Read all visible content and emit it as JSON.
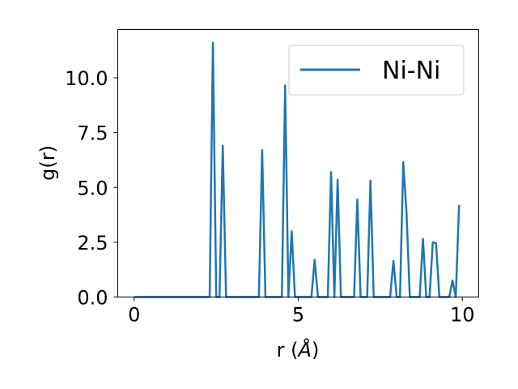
{
  "chart_data": {
    "type": "line",
    "xlabel_prefix": "r (",
    "xlabel_unit": "Å",
    "xlabel_suffix": ")",
    "ylabel": "g(r)",
    "xlim": [
      -0.5,
      10.5
    ],
    "ylim": [
      0,
      12.2
    ],
    "xticks": [
      0,
      5,
      10
    ],
    "xtick_labels": [
      "0",
      "5",
      "10"
    ],
    "yticks": [
      0,
      2.5,
      5,
      7.5,
      10
    ],
    "ytick_labels": [
      "0.0",
      "2.5",
      "5.0",
      "7.5",
      "10.0"
    ],
    "grid": false,
    "legend_position": "top-right",
    "series": [
      {
        "name": "Ni-Ni",
        "color": "#1f77b4",
        "x": [
          0,
          0.5,
          1.0,
          1.5,
          2.0,
          2.3,
          2.4,
          2.5,
          2.6,
          2.7,
          2.8,
          3.0,
          3.5,
          3.8,
          3.9,
          4.0,
          4.5,
          4.6,
          4.7,
          4.8,
          4.9,
          5.0,
          5.4,
          5.5,
          5.6,
          5.9,
          6.0,
          6.1,
          6.2,
          6.3,
          6.7,
          6.8,
          6.9,
          7.1,
          7.2,
          7.3,
          7.5,
          7.8,
          7.9,
          8.0,
          8.1,
          8.2,
          8.3,
          8.4,
          8.7,
          8.8,
          8.9,
          9.0,
          9.1,
          9.2,
          9.3,
          9.6,
          9.7,
          9.8,
          9.9
        ],
        "y": [
          0,
          0,
          0,
          0,
          0,
          0,
          11.6,
          0,
          0,
          6.9,
          0,
          0,
          0,
          0,
          6.7,
          0,
          0,
          9.65,
          0,
          3.0,
          0,
          0,
          0,
          1.7,
          0,
          0,
          5.7,
          0,
          5.35,
          0,
          0,
          4.45,
          0,
          0,
          5.3,
          0,
          0,
          0,
          1.65,
          0,
          0,
          6.15,
          3.8,
          0,
          0,
          2.65,
          0,
          0,
          2.5,
          2.45,
          0,
          0,
          0.75,
          0,
          4.2
        ]
      }
    ]
  }
}
